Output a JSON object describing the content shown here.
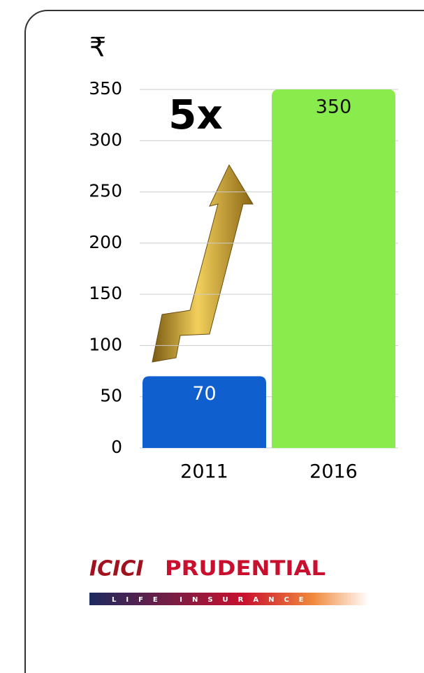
{
  "chart_data": {
    "type": "bar",
    "y_label": "₹",
    "annotation": "5x",
    "categories": [
      "2011",
      "2016"
    ],
    "values": [
      70,
      350
    ],
    "colors": [
      "#0f5fcf",
      "#8aeb4c"
    ],
    "ylim": [
      0,
      350
    ],
    "yticks": [
      0,
      50,
      100,
      150,
      200,
      250,
      300,
      350
    ],
    "grid": true
  },
  "logo": {
    "brand": "ICICI",
    "name": "PRUDENTIAL",
    "tagline": "LIFE INSURANCE"
  }
}
